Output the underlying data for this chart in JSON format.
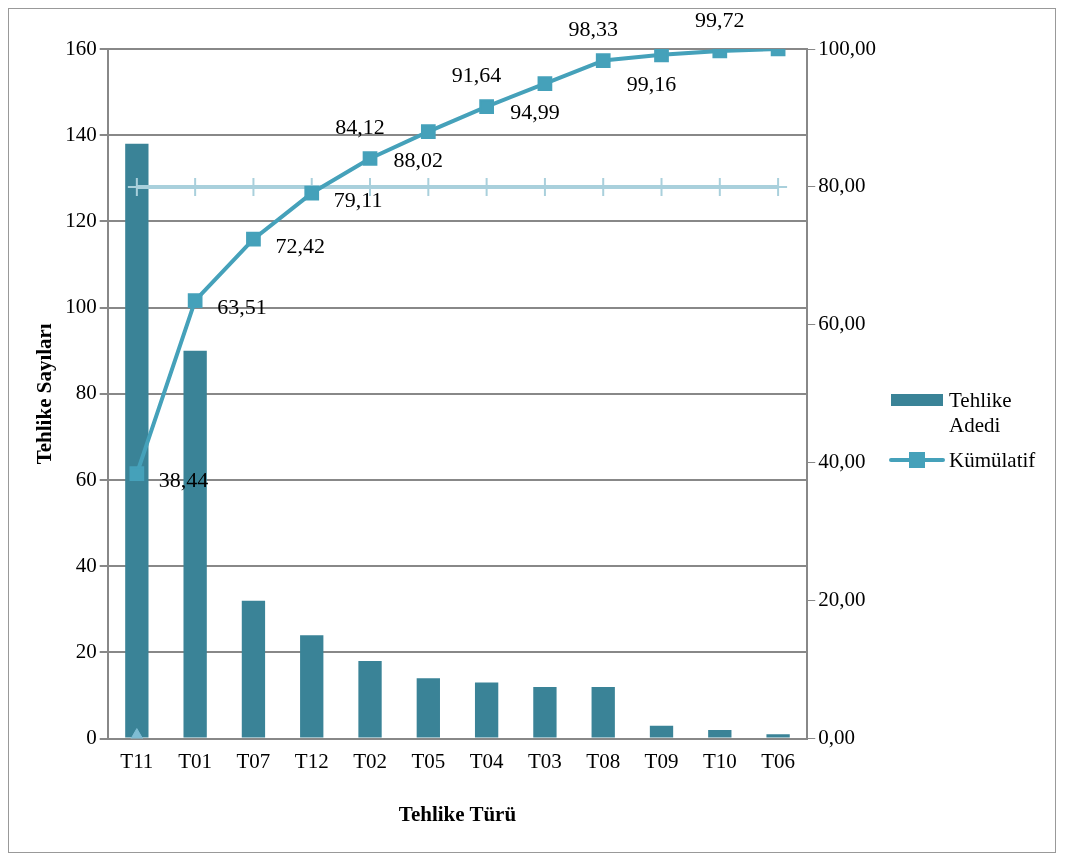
{
  "chart_data": {
    "type": "bar",
    "xlabel": "Tehlike Türü",
    "ylabel": "Tehlike Sayıları",
    "categories": [
      "T11",
      "T01",
      "T07",
      "T12",
      "T02",
      "T05",
      "T04",
      "T03",
      "T08",
      "T09",
      "T10",
      "T06"
    ],
    "series": [
      {
        "name": "Tehlike Adedi",
        "color": "#3a8397",
        "values": [
          138,
          90,
          32,
          24,
          18,
          14,
          13,
          12,
          12,
          3,
          2,
          1
        ]
      },
      {
        "name": "Kümülatif",
        "type": "line",
        "axis": "y2",
        "marker": "square",
        "color": "#45a1ba",
        "values": [
          38.44,
          63.51,
          72.42,
          79.11,
          84.12,
          88.02,
          91.64,
          94.99,
          98.33,
          99.16,
          99.72,
          100
        ],
        "value_labels": [
          "38,44",
          "63,51",
          "72,42",
          "79,11",
          "84,12",
          "88,02",
          "91,64",
          "94,99",
          "98,33",
          "99,16",
          "99,72",
          null
        ]
      },
      {
        "type": "line",
        "axis": "y2",
        "marker": "cross",
        "color": "#a9d0dc",
        "values": [
          80,
          80,
          80,
          80,
          80,
          80,
          80,
          80,
          80,
          80,
          80,
          80
        ]
      },
      {
        "type": "scatter",
        "axis": "y2",
        "marker": "triangle",
        "color": "#7fbdd4",
        "values": [
          0,
          null,
          null,
          null,
          null,
          null,
          null,
          null,
          null,
          null,
          null,
          null
        ]
      }
    ],
    "ylim": [
      0,
      160
    ],
    "yticks": [
      0,
      20,
      40,
      60,
      80,
      100,
      120,
      140,
      160
    ],
    "y2lim": [
      0,
      100
    ],
    "y2ticks": [
      {
        "value": 0,
        "label": "0,00"
      },
      {
        "value": 20,
        "label": "20,00"
      },
      {
        "value": 40,
        "label": "40,00"
      },
      {
        "value": 60,
        "label": "60,00"
      },
      {
        "value": 80,
        "label": "80,00"
      },
      {
        "value": 100,
        "label": "100,00"
      }
    ],
    "grid": "y",
    "legend": "right"
  }
}
